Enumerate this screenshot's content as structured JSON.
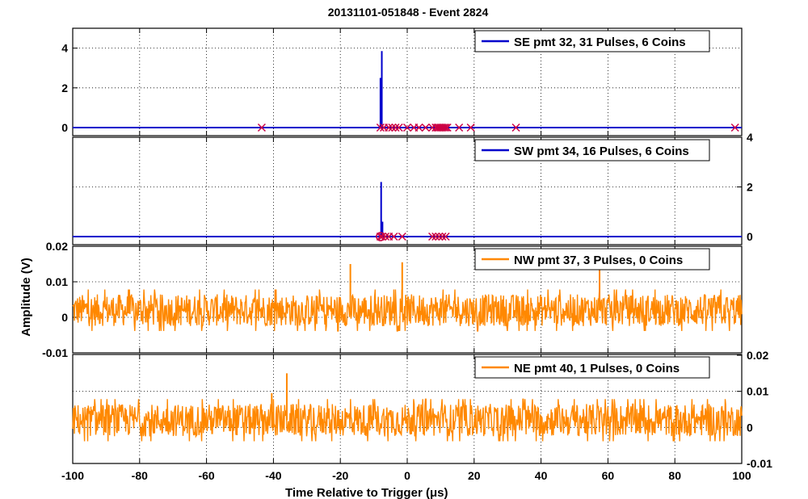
{
  "figure": {
    "title": "20131101-051848 - Event 2824",
    "xlabel": "Time Relative to Trigger (μs)",
    "ylabel": "Amplitude (V)"
  },
  "chart_data": [
    {
      "type": "line",
      "panel": "SE",
      "legend": "SE pmt 32, 31 Pulses, 6 Coins",
      "color": "#0000cc",
      "marker_color": "#cc0044",
      "xlim": [
        -100,
        100
      ],
      "ylim": [
        -0.2,
        5
      ],
      "yticks": [
        0,
        2,
        4
      ],
      "y_axis_side": "left",
      "baseline": 0.0,
      "spikes": [
        {
          "x": -8.0,
          "y": 2.5
        },
        {
          "x": -7.6,
          "y": 3.85
        }
      ],
      "pulse_markers_x": [
        -43.5,
        -8,
        -7,
        -5.5,
        -4.5,
        -3.5,
        -2.5,
        0,
        2,
        3.5,
        5.5,
        7.5,
        8.5,
        9,
        9.5,
        10,
        10.5,
        11,
        11.5,
        12,
        15.5,
        19,
        32.5,
        98
      ]
    },
    {
      "type": "line",
      "panel": "SW",
      "legend": "SW pmt 34, 16 Pulses, 6 Coins",
      "color": "#0000cc",
      "marker_color": "#cc0044",
      "xlim": [
        -100,
        100
      ],
      "ylim": [
        -0.2,
        4
      ],
      "yticks": [
        0,
        2,
        4
      ],
      "y_axis_side": "right",
      "baseline": 0.0,
      "spikes": [
        {
          "x": -7.8,
          "y": 2.2
        },
        {
          "x": -7.4,
          "y": 0.6
        }
      ],
      "pulse_markers_x": [
        -8,
        -7.5,
        -6.5,
        -5.5,
        -4,
        -1.5,
        7.5,
        8.5,
        9.5,
        10.5,
        11.5
      ],
      "ring_markers_x": [
        -8
      ]
    },
    {
      "type": "line",
      "panel": "NW",
      "legend": "NW pmt 37, 3 Pulses, 0 Coins",
      "color": "#ff8800",
      "xlim": [
        -100,
        100
      ],
      "ylim": [
        -0.01,
        0.02
      ],
      "yticks": [
        -0.01,
        0,
        0.01,
        0.02
      ],
      "ytick_labels": [
        "-0.01",
        "0",
        "0.01",
        "0.02"
      ],
      "y_axis_side": "left",
      "noise_center": 0.002,
      "noise_amplitude": 0.0045,
      "peaks": [
        {
          "x": -17,
          "y": 0.015
        },
        {
          "x": -1.5,
          "y": 0.0155
        },
        {
          "x": 57.5,
          "y": 0.0135
        }
      ]
    },
    {
      "type": "line",
      "panel": "NE",
      "legend": "NE pmt 40, 1 Pulses, 0 Coins",
      "color": "#ff8800",
      "xlim": [
        -100,
        100
      ],
      "ylim": [
        -0.01,
        0.02
      ],
      "yticks": [
        -0.01,
        0,
        0.01,
        0.02
      ],
      "ytick_labels": [
        "-0.01",
        "0",
        "0.01",
        "0.02"
      ],
      "y_axis_side": "right",
      "noise_center": 0.002,
      "noise_amplitude": 0.0045,
      "peaks": [
        {
          "x": -36,
          "y": 0.015
        },
        {
          "x": -40.5,
          "y": 0.0095
        }
      ]
    }
  ],
  "x_axis": {
    "ticks": [
      -100,
      -80,
      -60,
      -40,
      -20,
      0,
      20,
      40,
      60,
      80,
      100
    ],
    "grid": true
  }
}
